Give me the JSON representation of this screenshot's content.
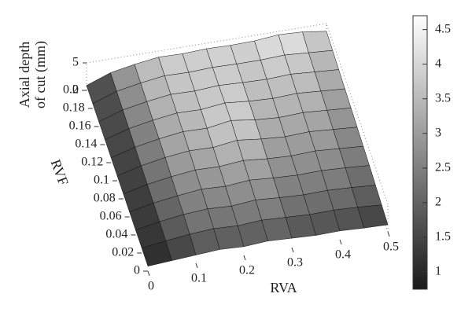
{
  "chart_data": {
    "type": "surface",
    "x_label": "RVA",
    "y_label": "RVF",
    "z_label": [
      "Axial depth",
      "of cut (mm)"
    ],
    "x": [
      0,
      0.05,
      0.1,
      0.15,
      0.2,
      0.25,
      0.3,
      0.35,
      0.4,
      0.45,
      0.5
    ],
    "y": [
      0,
      0.02,
      0.04,
      0.06,
      0.08,
      0.1,
      0.12,
      0.14,
      0.16,
      0.18,
      0.2
    ],
    "z": [
      [
        0.9,
        1.2,
        1.5,
        1.8,
        1.6,
        1.9,
        1.7,
        1.5,
        1.6,
        1.4,
        1.3
      ],
      [
        0.9,
        1.5,
        2.0,
        2.3,
        2.1,
        2.4,
        2.2,
        2.0,
        2.1,
        1.9,
        1.6
      ],
      [
        0.9,
        1.7,
        2.3,
        2.6,
        2.4,
        2.8,
        2.5,
        2.3,
        2.4,
        2.2,
        1.9
      ],
      [
        0.9,
        1.8,
        2.4,
        2.9,
        2.7,
        3.1,
        2.8,
        2.6,
        2.7,
        2.5,
        2.2
      ],
      [
        0.9,
        1.9,
        2.6,
        3.1,
        3.0,
        3.4,
        3.0,
        2.8,
        3.0,
        2.7,
        2.4
      ],
      [
        0.9,
        2.0,
        2.8,
        3.3,
        3.2,
        3.8,
        3.3,
        3.0,
        3.2,
        2.9,
        2.6
      ],
      [
        0.9,
        2.1,
        2.9,
        3.5,
        3.4,
        4.1,
        3.5,
        3.2,
        3.4,
        3.1,
        2.8
      ],
      [
        0.9,
        2.2,
        3.0,
        3.6,
        3.5,
        4.0,
        3.6,
        3.4,
        3.6,
        3.3,
        3.0
      ],
      [
        0.9,
        2.3,
        3.1,
        3.7,
        3.6,
        3.9,
        3.7,
        3.6,
        3.8,
        3.5,
        3.2
      ],
      [
        0.9,
        2.4,
        3.2,
        3.8,
        3.7,
        3.9,
        3.8,
        3.8,
        4.0,
        3.7,
        3.4
      ],
      [
        0.9,
        2.5,
        3.3,
        3.9,
        3.8,
        4.0,
        3.9,
        4.0,
        4.4,
        4.2,
        3.6
      ]
    ],
    "xlim": [
      0,
      0.5
    ],
    "xticks": [
      0,
      0.1,
      0.2,
      0.3,
      0.4,
      0.5
    ],
    "ylim": [
      0,
      0.2
    ],
    "yticks": [
      0,
      0.02,
      0.04,
      0.06,
      0.08,
      0.1,
      0.12,
      0.14,
      0.16,
      0.18,
      0.2
    ],
    "zlim": [
      0,
      5
    ],
    "zticks": [
      0,
      5
    ],
    "clim": [
      0.75,
      4.7
    ],
    "cticks": [
      1,
      1.5,
      2,
      2.5,
      3,
      3.5,
      4,
      4.5
    ],
    "colormap": "gray"
  }
}
